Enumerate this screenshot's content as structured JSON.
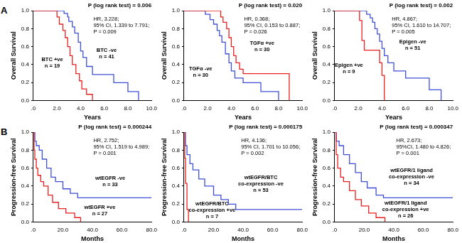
{
  "chart_data": [
    {
      "type": "line",
      "panel_label": "A",
      "y_label": "Overall Survival",
      "x_label": "Years",
      "p_text": "P (log rank test) = 0.006",
      "annotations": [
        "HR, 3.228;",
        "95% CI, 1.339 to 7.791;",
        "P = 0.009"
      ],
      "xlim": [
        0,
        10
      ],
      "xticks": [
        {
          "value": 0,
          "label": ".0"
        },
        {
          "value": 2,
          "label": "2.0"
        },
        {
          "value": 4,
          "label": "4.0"
        },
        {
          "value": 6,
          "label": "6.0"
        },
        {
          "value": 8,
          "label": "8.0"
        },
        {
          "value": 10,
          "label": "10.0"
        }
      ],
      "ylim": [
        0,
        1
      ],
      "yticks": [
        {
          "value": 0,
          "label": "0.0"
        },
        {
          "value": 0.2,
          "label": "0.2"
        },
        {
          "value": 0.4,
          "label": "0.4"
        },
        {
          "value": 0.6,
          "label": "0.6"
        },
        {
          "value": 0.8,
          "label": "0.8"
        },
        {
          "value": 1,
          "label": "1.0"
        }
      ],
      "grid": false,
      "series": [
        {
          "label": [
            "BTC +ve",
            "n = 19"
          ],
          "color": "#e8201f",
          "line_style": "step",
          "x": [
            0,
            2.0,
            2.2,
            2.5,
            2.7,
            2.9,
            3.1,
            3.3,
            3.6,
            3.9,
            4.1,
            4.5,
            5.0
          ],
          "values": [
            1,
            0.93,
            0.85,
            0.78,
            0.7,
            0.6,
            0.5,
            0.4,
            0.3,
            0.22,
            0.13,
            0.07,
            0
          ]
        },
        {
          "label": [
            "BTC -ve",
            "n = 41"
          ],
          "color": "#3f4fd6",
          "line_style": "step",
          "x": [
            0,
            2.6,
            2.9,
            3.0,
            3.3,
            3.5,
            3.8,
            4.0,
            4.2,
            4.5,
            5.0,
            6.8,
            8.0,
            8.9
          ],
          "values": [
            1,
            0.97,
            0.93,
            0.88,
            0.82,
            0.75,
            0.65,
            0.55,
            0.48,
            0.38,
            0.29,
            0.2,
            0.1,
            0
          ]
        }
      ]
    },
    {
      "type": "line",
      "y_label": "Overall Survival",
      "x_label": "Years",
      "p_text": "P (log rank test) = 0.020",
      "annotations": [
        "HR, 0.368;",
        "95% CI, 0.153 to 0.887;",
        "P = 0.026"
      ],
      "xlim": [
        0,
        10
      ],
      "xticks": [
        {
          "value": 0,
          "label": ".0"
        },
        {
          "value": 2,
          "label": "2.0"
        },
        {
          "value": 4,
          "label": "4.0"
        },
        {
          "value": 6,
          "label": "6.0"
        },
        {
          "value": 8,
          "label": "8.0"
        },
        {
          "value": 10,
          "label": "10.0"
        }
      ],
      "ylim": [
        0,
        1
      ],
      "yticks": [
        {
          "value": 0,
          "label": "0.0"
        },
        {
          "value": 0.2,
          "label": "0.2"
        },
        {
          "value": 0.4,
          "label": "0.4"
        },
        {
          "value": 0.6,
          "label": "0.6"
        },
        {
          "value": 0.8,
          "label": "0.8"
        },
        {
          "value": 1,
          "label": "1.0"
        }
      ],
      "grid": false,
      "series": [
        {
          "label": [
            "TGFα +ve",
            "n = 30"
          ],
          "color": "#e8201f",
          "line_style": "step",
          "x": [
            0,
            3.1,
            3.3,
            3.6,
            3.8,
            4.0,
            4.2,
            4.4,
            4.7,
            5.0,
            8.9
          ],
          "values": [
            1,
            0.93,
            0.87,
            0.8,
            0.7,
            0.6,
            0.5,
            0.42,
            0.35,
            0.3,
            0
          ]
        },
        {
          "label": [
            "TGFα -ve",
            "n = 30"
          ],
          "color": "#3f4fd6",
          "line_style": "step",
          "x": [
            0,
            1.8,
            2.2,
            2.5,
            2.8,
            3.0,
            3.2,
            3.5,
            3.8,
            4.0,
            4.3,
            5.0,
            6.5,
            8.0
          ],
          "values": [
            1,
            0.96,
            0.9,
            0.85,
            0.78,
            0.72,
            0.65,
            0.52,
            0.42,
            0.33,
            0.25,
            0.2,
            0.1,
            0
          ]
        }
      ]
    },
    {
      "type": "line",
      "y_label": "Overall Survival",
      "x_label": "Years",
      "p_text": "P (log rank test) = 0.002",
      "annotations": [
        "HR, 4.867;",
        "95% CI, 1.610 to 14.707;",
        "P = 0.005"
      ],
      "xlim": [
        0,
        10
      ],
      "xticks": [
        {
          "value": 0,
          "label": ".0"
        },
        {
          "value": 2,
          "label": "2.0"
        },
        {
          "value": 4,
          "label": "4.0"
        },
        {
          "value": 6,
          "label": "6.0"
        },
        {
          "value": 8,
          "label": "8.0"
        },
        {
          "value": 10,
          "label": "10.0"
        }
      ],
      "ylim": [
        0,
        1
      ],
      "yticks": [
        {
          "value": 0,
          "label": "0.0"
        },
        {
          "value": 0.2,
          "label": "0.2"
        },
        {
          "value": 0.4,
          "label": "0.4"
        },
        {
          "value": 0.6,
          "label": "0.6"
        },
        {
          "value": 0.8,
          "label": "0.8"
        },
        {
          "value": 1,
          "label": "1.0"
        }
      ],
      "grid": false,
      "series": [
        {
          "label": [
            "Epigen +ve",
            "n = 9"
          ],
          "color": "#e8201f",
          "line_style": "step",
          "x": [
            0,
            2.1,
            2.3,
            2.5,
            3.8,
            4.0,
            4.2
          ],
          "values": [
            1,
            0.89,
            0.67,
            0.56,
            0.42,
            0.28,
            0
          ]
        },
        {
          "label": [
            "Epigen -ve",
            "n = 51"
          ],
          "color": "#3f4fd6",
          "line_style": "step",
          "x": [
            0,
            2.7,
            3.0,
            3.2,
            3.4,
            3.6,
            3.8,
            4.0,
            4.2,
            4.5,
            5.0,
            6.0,
            8.0,
            9.0
          ],
          "values": [
            1,
            0.96,
            0.92,
            0.87,
            0.8,
            0.74,
            0.66,
            0.58,
            0.5,
            0.42,
            0.33,
            0.25,
            0.12,
            0
          ]
        }
      ]
    },
    {
      "type": "line",
      "panel_label": "B",
      "y_label": "Progression-free Survival",
      "x_label": "Months",
      "p_text": "P (log rank test) = 0.000244",
      "annotations": [
        "HR, 2.752;",
        "95% CI, 1.519 to 4.989;",
        "P = 0.001"
      ],
      "xlim": [
        0,
        80
      ],
      "xticks": [
        {
          "value": 0,
          "label": ".0"
        },
        {
          "value": 20,
          "label": "20.0"
        },
        {
          "value": 40,
          "label": "40.0"
        },
        {
          "value": 60,
          "label": "60.0"
        },
        {
          "value": 80,
          "label": "80.0"
        }
      ],
      "ylim": [
        0,
        1
      ],
      "yticks": [
        {
          "value": 0,
          "label": "0.0"
        },
        {
          "value": 0.2,
          "label": "0.2"
        },
        {
          "value": 0.4,
          "label": "0.4"
        },
        {
          "value": 0.6,
          "label": "0.6"
        },
        {
          "value": 0.8,
          "label": "0.8"
        },
        {
          "value": 1,
          "label": "1.0"
        }
      ],
      "grid": false,
      "series": [
        {
          "label": [
            "wtEGFR +ve",
            "n = 27"
          ],
          "color": "#e8201f",
          "line_style": "step",
          "x": [
            0,
            0.5,
            1,
            2,
            3,
            5,
            7,
            10,
            13,
            17,
            22,
            28,
            32
          ],
          "values": [
            1,
            0.8,
            0.7,
            0.6,
            0.52,
            0.45,
            0.4,
            0.3,
            0.22,
            0.15,
            0.1,
            0.05,
            0
          ]
        },
        {
          "label": [
            "wtEGFR -ve",
            "n = 33"
          ],
          "color": "#3f4fd6",
          "line_style": "step",
          "x": [
            0,
            1,
            2,
            4,
            6,
            9,
            12,
            15,
            20,
            25,
            30,
            80
          ],
          "values": [
            1,
            0.9,
            0.85,
            0.8,
            0.7,
            0.6,
            0.5,
            0.45,
            0.37,
            0.32,
            0.27,
            0.27
          ]
        }
      ]
    },
    {
      "type": "line",
      "y_label": "Progression-free Survival",
      "x_label": "Months",
      "p_text": "P (log rank test) = 0.000175",
      "annotations": [
        "HR, 4.136;",
        "95% CI, 1.701 to 10.056;",
        "P = 0.002"
      ],
      "xlim": [
        0,
        80
      ],
      "xticks": [
        {
          "value": 0,
          "label": ".0"
        },
        {
          "value": 20,
          "label": "20.0"
        },
        {
          "value": 40,
          "label": "40.0"
        },
        {
          "value": 60,
          "label": "60.0"
        },
        {
          "value": 80,
          "label": "80.0"
        }
      ],
      "ylim": [
        0,
        1
      ],
      "yticks": [
        {
          "value": 0,
          "label": "0.0"
        },
        {
          "value": 0.2,
          "label": "0.2"
        },
        {
          "value": 0.4,
          "label": "0.4"
        },
        {
          "value": 0.6,
          "label": "0.6"
        },
        {
          "value": 0.8,
          "label": "0.8"
        },
        {
          "value": 1,
          "label": "1.0"
        }
      ],
      "grid": false,
      "series": [
        {
          "label": [
            "wtEGFR/BTC",
            "co-expression +ve",
            "n = 7"
          ],
          "color": "#e8201f",
          "line_style": "step",
          "x": [
            0,
            0.5,
            1,
            2,
            3
          ],
          "values": [
            1,
            0.71,
            0.43,
            0.14,
            0
          ]
        },
        {
          "label": [
            "wtEGFR/BTC",
            "co-expression -ve",
            "n = 53"
          ],
          "color": "#3f4fd6",
          "line_style": "step",
          "x": [
            0,
            1,
            2,
            4,
            6,
            10,
            14,
            20,
            25,
            30,
            35,
            80
          ],
          "values": [
            1,
            0.85,
            0.75,
            0.65,
            0.58,
            0.48,
            0.4,
            0.3,
            0.25,
            0.2,
            0.14,
            0.14
          ]
        }
      ]
    },
    {
      "type": "line",
      "y_label": "Progression-free Survival",
      "x_label": "Months",
      "p_text": "P (log rank test) = 0.000347",
      "annotations": [
        "HR, 2.673;",
        "95%CI, 1.480 to 4.826;",
        "P = 0.001"
      ],
      "xlim": [
        0,
        80
      ],
      "xticks": [
        {
          "value": 0,
          "label": ".0"
        },
        {
          "value": 20,
          "label": "20.0"
        },
        {
          "value": 40,
          "label": "40.0"
        },
        {
          "value": 60,
          "label": "60.0"
        },
        {
          "value": 80,
          "label": "80.0"
        }
      ],
      "ylim": [
        0,
        1
      ],
      "yticks": [
        {
          "value": 0,
          "label": "0.0"
        },
        {
          "value": 0.2,
          "label": "0.2"
        },
        {
          "value": 0.4,
          "label": "0.4"
        },
        {
          "value": 0.6,
          "label": "0.6"
        },
        {
          "value": 0.8,
          "label": "0.8"
        },
        {
          "value": 1,
          "label": "1.0"
        }
      ],
      "grid": false,
      "series": [
        {
          "label": [
            "wtEGFR/1 ligand",
            "co-expression +ve",
            "n = 26"
          ],
          "color": "#e8201f",
          "line_style": "step",
          "x": [
            0,
            1,
            2,
            4,
            6,
            10,
            14,
            18,
            23,
            28,
            34
          ],
          "values": [
            1,
            0.75,
            0.6,
            0.5,
            0.45,
            0.35,
            0.25,
            0.18,
            0.1,
            0.05,
            0
          ]
        },
        {
          "label": [
            "wtEGFR/1 ligand",
            "co-expression -ve",
            "n = 34"
          ],
          "color": "#3f4fd6",
          "line_style": "step",
          "x": [
            0,
            1,
            3,
            6,
            10,
            14,
            18,
            22,
            28,
            33,
            80
          ],
          "values": [
            1,
            0.9,
            0.85,
            0.75,
            0.65,
            0.55,
            0.45,
            0.38,
            0.3,
            0.27,
            0.27
          ]
        }
      ]
    }
  ]
}
